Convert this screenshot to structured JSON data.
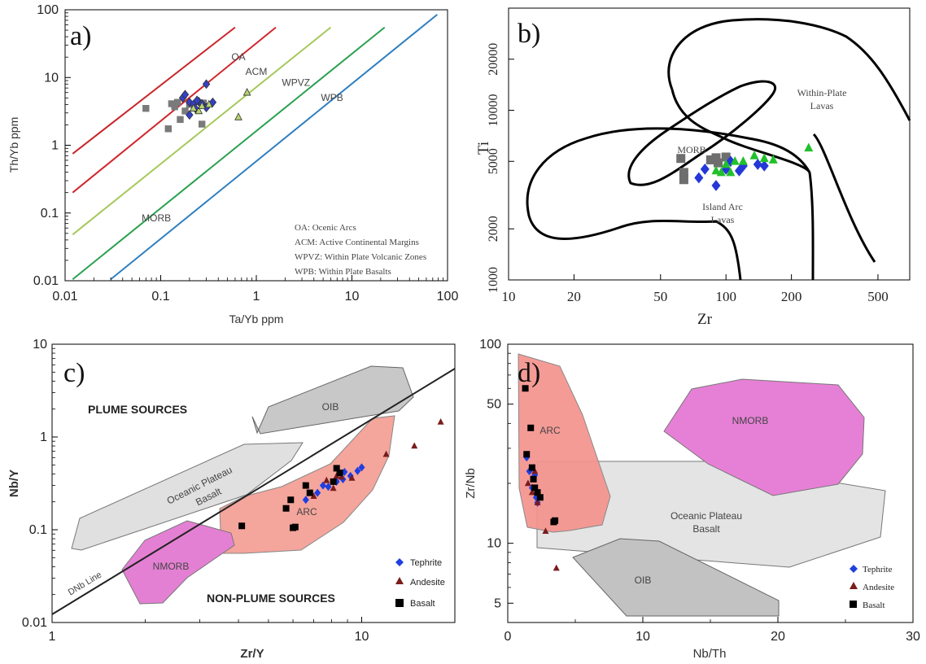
{
  "chart_data": [
    {
      "panel": "a)",
      "type": "scatter",
      "x_scale": "log",
      "y_scale": "log",
      "xlim": [
        0.01,
        100
      ],
      "ylim": [
        0.01,
        100
      ],
      "xlabel": "Ta/Yb ppm",
      "ylabel": "Th/Yb ppm",
      "x_ticks": [
        "0.01",
        "0.1",
        "1",
        "10",
        "100"
      ],
      "y_ticks": [
        "0.01",
        "0.1",
        "1",
        "10",
        "100"
      ],
      "boundary_lines": [
        {
          "color": "#c8262a",
          "x": [
            0.012,
            0.6
          ],
          "y": [
            0.75,
            55
          ]
        },
        {
          "color": "#d0262c",
          "x": [
            0.012,
            1.6
          ],
          "y": [
            0.2,
            55
          ]
        },
        {
          "color": "#a5c85a",
          "x": [
            0.012,
            6
          ],
          "y": [
            0.048,
            55
          ]
        },
        {
          "color": "#2aa050",
          "x": [
            0.012,
            22
          ],
          "y": [
            0.0105,
            55
          ]
        },
        {
          "color": "#2f7fc0",
          "x": [
            0.03,
            78
          ],
          "y": [
            0.0105,
            85
          ]
        }
      ],
      "field_labels": [
        {
          "text": "OA",
          "x": 0.65,
          "y": 18
        },
        {
          "text": "ACM",
          "x": 1.0,
          "y": 11
        },
        {
          "text": "WPVZ",
          "x": 2.6,
          "y": 7.5
        },
        {
          "text": "WPB",
          "x": 6.2,
          "y": 4.5
        },
        {
          "text": "MORB",
          "x": 0.09,
          "y": 0.075
        }
      ],
      "legend_notes": [
        "OA: Ocenic Arcs",
        "ACM: Active Continental Margins",
        "WPVZ: Within Plate Volcanic Zones",
        "WPB: Within Plate Basalts"
      ],
      "series": [
        {
          "marker": "square",
          "color": "#7a7a7a",
          "points": [
            [
              0.07,
              3.5
            ],
            [
              0.12,
              1.75
            ],
            [
              0.13,
              4.1
            ],
            [
              0.14,
              3.7
            ],
            [
              0.16,
              2.4
            ],
            [
              0.15,
              4.3
            ],
            [
              0.2,
              4.0
            ],
            [
              0.27,
              2.05
            ],
            [
              0.28,
              4.2
            ],
            [
              0.18,
              3.2
            ]
          ]
        },
        {
          "marker": "diamond",
          "color": "#3340c8",
          "points": [
            [
              0.17,
              5.0
            ],
            [
              0.18,
              5.6
            ],
            [
              0.2,
              4.3
            ],
            [
              0.22,
              4.0
            ],
            [
              0.23,
              3.5
            ],
            [
              0.25,
              4.4
            ],
            [
              0.27,
              4.1
            ],
            [
              0.3,
              8.0
            ],
            [
              0.3,
              3.6
            ],
            [
              0.35,
              4.3
            ],
            [
              0.2,
              2.8
            ],
            [
              0.24,
              4.6
            ]
          ]
        },
        {
          "marker": "triangle",
          "color": "#b4d26e",
          "points": [
            [
              0.22,
              3.5
            ],
            [
              0.25,
              3.2
            ],
            [
              0.32,
              4.0
            ],
            [
              0.65,
              2.6
            ],
            [
              0.8,
              6.0
            ],
            [
              0.27,
              3.8
            ]
          ]
        }
      ]
    },
    {
      "panel": "b)",
      "type": "scatter",
      "x_scale": "log",
      "y_scale": "log",
      "xlim": [
        10,
        700
      ],
      "ylim": [
        1000,
        40000
      ],
      "xlabel": "Zr",
      "ylabel": "Ti",
      "x_ticks": [
        "10",
        "20",
        "50",
        "100",
        "200",
        "500"
      ],
      "y_ticks": [
        "1000",
        "2000",
        "5000",
        "10000",
        "20000"
      ],
      "field_labels": [
        "Within-Plate",
        "Lavas",
        "MORB",
        "Island Arc",
        "Lavas"
      ],
      "series": [
        {
          "marker": "square",
          "color": "#6e6e6e",
          "points": [
            [
              62,
              5200
            ],
            [
              64,
              4300
            ],
            [
              64,
              3900
            ],
            [
              85,
              5100
            ],
            [
              90,
              5250
            ],
            [
              100,
              5300
            ],
            [
              92,
              4900
            ]
          ]
        },
        {
          "marker": "diamond",
          "color": "#2438d8",
          "points": [
            [
              75,
              4000
            ],
            [
              80,
              4500
            ],
            [
              90,
              3600
            ],
            [
              100,
              4500
            ],
            [
              105,
              5000
            ],
            [
              120,
              4700
            ],
            [
              140,
              4800
            ],
            [
              150,
              4700
            ],
            [
              115,
              4400
            ]
          ]
        },
        {
          "marker": "triangle",
          "color": "#21c02c",
          "points": [
            [
              90,
              4400
            ],
            [
              95,
              4300
            ],
            [
              100,
              4800
            ],
            [
              110,
              5000
            ],
            [
              120,
              5000
            ],
            [
              135,
              5400
            ],
            [
              150,
              5200
            ],
            [
              165,
              5100
            ],
            [
              240,
              6000
            ],
            [
              105,
              4300
            ]
          ]
        }
      ]
    },
    {
      "panel": "c)",
      "type": "scatter",
      "x_scale": "log",
      "y_scale": "log",
      "xlim": [
        1,
        20
      ],
      "ylim": [
        0.01,
        10
      ],
      "xlabel": "Zr/Y",
      "ylabel": "Nb/Y",
      "x_ticks": [
        "1",
        "10"
      ],
      "y_ticks": [
        "0.01",
        "0.1",
        "1",
        "10"
      ],
      "field_labels": [
        "PLUME SOURCES",
        "NON-PLUME SOURCES",
        "OIB",
        "Oceanic Plateau",
        "Basalt",
        "ARC",
        "NMORB",
        "DNb Line"
      ],
      "legend": [
        "Tephrite",
        "Andesite",
        "Basalt"
      ],
      "series": [
        {
          "name": "Tephrite",
          "marker": "diamond",
          "color": "#1f3fe0",
          "points": [
            [
              6.6,
              0.21
            ],
            [
              7.2,
              0.25
            ],
            [
              7.8,
              0.29
            ],
            [
              8.3,
              0.33
            ],
            [
              8.7,
              0.35
            ],
            [
              9.2,
              0.38
            ],
            [
              9.7,
              0.43
            ],
            [
              10.0,
              0.47
            ],
            [
              8.8,
              0.42
            ],
            [
              7.5,
              0.3
            ]
          ]
        },
        {
          "name": "Andesite",
          "marker": "triangle",
          "color": "#7a1c1c",
          "points": [
            [
              7.0,
              0.23
            ],
            [
              7.7,
              0.34
            ],
            [
              8.1,
              0.28
            ],
            [
              8.6,
              0.37
            ],
            [
              9.3,
              0.36
            ],
            [
              12.0,
              0.65
            ],
            [
              14.8,
              0.8
            ],
            [
              18.0,
              1.45
            ],
            [
              8.3,
              0.38
            ]
          ]
        },
        {
          "name": "Basalt",
          "marker": "square",
          "color": "#000000",
          "points": [
            [
              4.1,
              0.11
            ],
            [
              5.7,
              0.17
            ],
            [
              5.9,
              0.21
            ],
            [
              6.0,
              0.105
            ],
            [
              6.1,
              0.107
            ],
            [
              6.6,
              0.3
            ],
            [
              6.8,
              0.25
            ],
            [
              8.1,
              0.33
            ],
            [
              8.3,
              0.46
            ],
            [
              8.5,
              0.41
            ]
          ]
        }
      ]
    },
    {
      "panel": "d)",
      "type": "scatter",
      "x_scale": "linear",
      "y_scale": "log",
      "xlim": [
        0,
        30
      ],
      "ylim": [
        4,
        100
      ],
      "xlabel": "Nb/Th",
      "ylabel": "Zr/Nb",
      "x_ticks": [
        "0",
        "10",
        "20",
        "30"
      ],
      "y_ticks": [
        "5",
        "10",
        "50",
        "100"
      ],
      "field_labels": [
        "ARC",
        "NMORB",
        "Oceanic Plateau",
        "Basalt",
        "OIB"
      ],
      "legend": [
        "Tephrite",
        "Andesite",
        "Basalt"
      ],
      "series": [
        {
          "name": "Tephrite",
          "marker": "diamond",
          "color": "#1f3fe0",
          "points": [
            [
              1.4,
              27
            ],
            [
              1.6,
              23
            ],
            [
              1.8,
              19
            ],
            [
              2.0,
              22
            ],
            [
              2.1,
              17
            ],
            [
              2.2,
              16
            ]
          ]
        },
        {
          "name": "Andesite",
          "marker": "triangle",
          "color": "#7a1c1c",
          "points": [
            [
              1.5,
              20
            ],
            [
              1.8,
              18
            ],
            [
              2.0,
              23
            ],
            [
              2.8,
              11.5
            ],
            [
              3.6,
              7.5
            ],
            [
              2.2,
              16
            ]
          ]
        },
        {
          "name": "Basalt",
          "marker": "square",
          "color": "#000000",
          "points": [
            [
              1.3,
              60
            ],
            [
              1.4,
              28
            ],
            [
              1.7,
              38
            ],
            [
              1.8,
              24
            ],
            [
              1.9,
              21
            ],
            [
              2.0,
              19
            ],
            [
              2.2,
              18
            ],
            [
              2.4,
              17
            ],
            [
              3.4,
              12.8
            ],
            [
              3.5,
              13
            ]
          ]
        }
      ]
    }
  ]
}
